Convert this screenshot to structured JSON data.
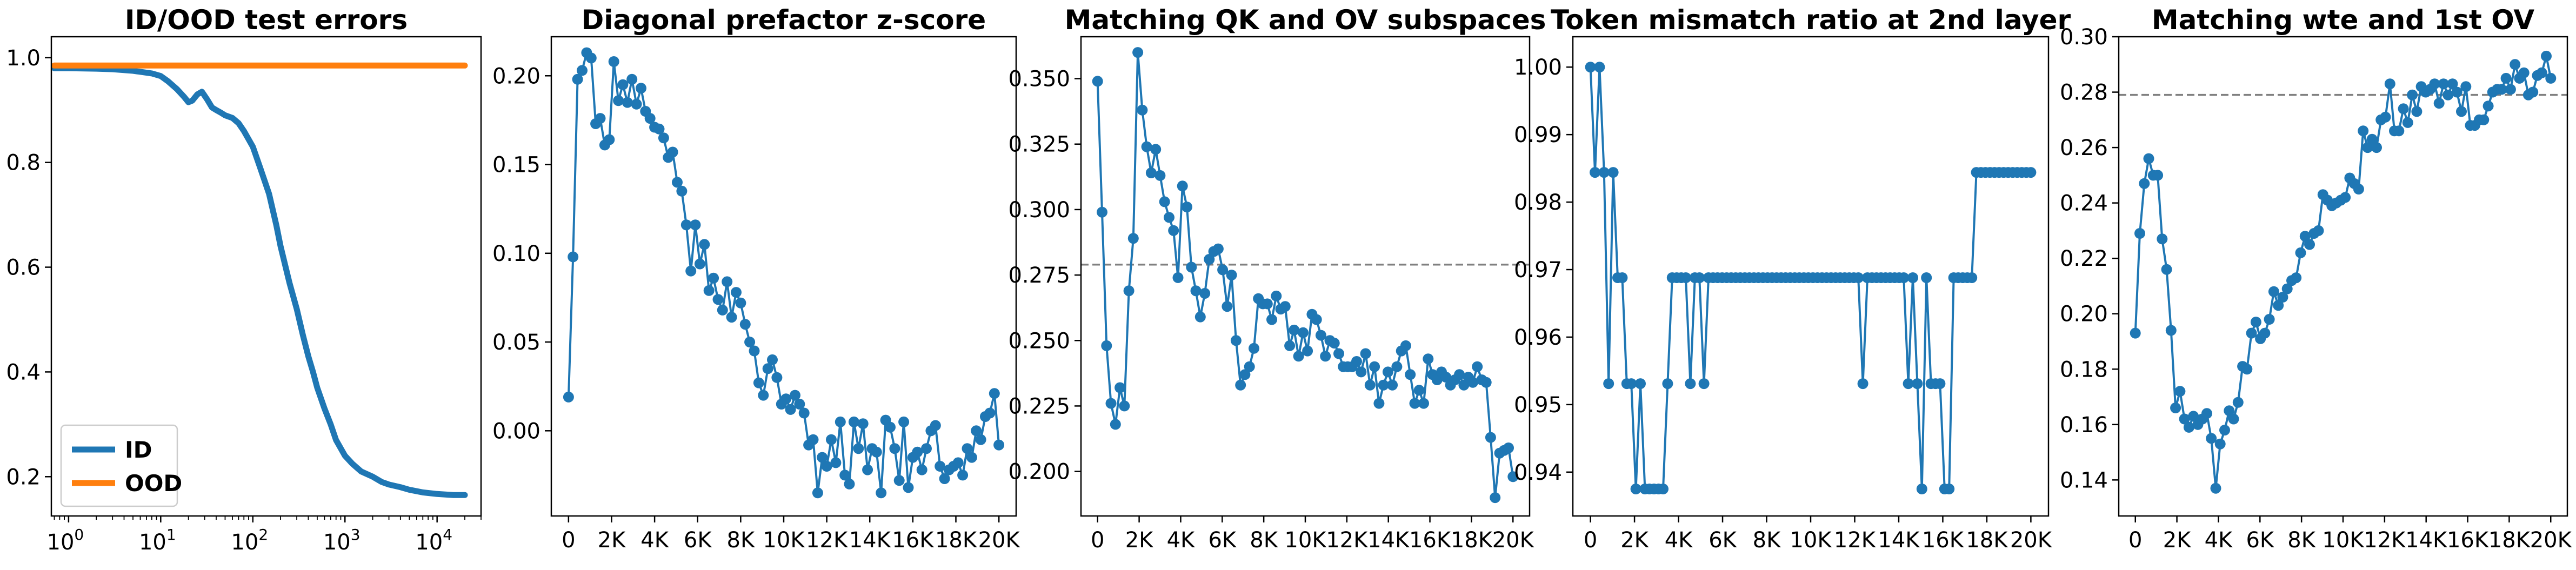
{
  "chart_data": [
    {
      "type": "line",
      "title": "ID/OOD test errors",
      "xscale": "log",
      "xlim": [
        0.65,
        30000
      ],
      "ylim": [
        0.125,
        1.04
      ],
      "xticks": [
        {
          "value": 1,
          "base": "10",
          "exp": "0"
        },
        {
          "value": 10,
          "base": "10",
          "exp": "1"
        },
        {
          "value": 100,
          "base": "10",
          "exp": "2"
        },
        {
          "value": 1000,
          "base": "10",
          "exp": "3"
        },
        {
          "value": 10000,
          "base": "10",
          "exp": "4"
        }
      ],
      "yticks": [
        {
          "value": 0.2,
          "label": "0.2"
        },
        {
          "value": 0.4,
          "label": "0.4"
        },
        {
          "value": 0.6,
          "label": "0.6"
        },
        {
          "value": 0.8,
          "label": "0.8"
        },
        {
          "value": 1.0,
          "label": "1.0"
        }
      ],
      "legend": {
        "position": "lower-left"
      },
      "series": [
        {
          "name": "ID",
          "color": "#1f77b4",
          "x": [
            0.7,
            1,
            2,
            3,
            5,
            8,
            10,
            12,
            15,
            18,
            20,
            22,
            25,
            28,
            32,
            36,
            40,
            45,
            50,
            60,
            70,
            80,
            100,
            120,
            150,
            180,
            200,
            250,
            300,
            350,
            400,
            450,
            500,
            600,
            700,
            800,
            1000,
            1200,
            1500,
            2000,
            2500,
            3000,
            4000,
            5000,
            7000,
            10000,
            15000,
            20000
          ],
          "y": [
            0.98,
            0.98,
            0.979,
            0.978,
            0.975,
            0.97,
            0.965,
            0.955,
            0.94,
            0.925,
            0.915,
            0.918,
            0.93,
            0.935,
            0.92,
            0.905,
            0.9,
            0.895,
            0.89,
            0.885,
            0.875,
            0.86,
            0.83,
            0.79,
            0.74,
            0.68,
            0.64,
            0.57,
            0.52,
            0.47,
            0.43,
            0.4,
            0.37,
            0.33,
            0.3,
            0.27,
            0.24,
            0.225,
            0.21,
            0.2,
            0.19,
            0.185,
            0.18,
            0.175,
            0.17,
            0.167,
            0.165,
            0.165
          ]
        },
        {
          "name": "OOD",
          "color": "#ff7f0e",
          "x": [
            0.7,
            1,
            10,
            100,
            1000,
            10000,
            20000
          ],
          "y": [
            0.985,
            0.985,
            0.985,
            0.985,
            0.985,
            0.985,
            0.985
          ]
        }
      ]
    },
    {
      "type": "line",
      "title": "Diagonal prefactor z-score",
      "xlim": [
        -800,
        20800
      ],
      "ylim": [
        -0.048,
        0.222
      ],
      "xticks": [
        {
          "value": 0,
          "label": "0"
        },
        {
          "value": 2000,
          "label": "2K"
        },
        {
          "value": 4000,
          "label": "4K"
        },
        {
          "value": 6000,
          "label": "6K"
        },
        {
          "value": 8000,
          "label": "8K"
        },
        {
          "value": 10000,
          "label": "10K"
        },
        {
          "value": 12000,
          "label": "12K"
        },
        {
          "value": 14000,
          "label": "14K"
        },
        {
          "value": 16000,
          "label": "16K"
        },
        {
          "value": 18000,
          "label": "18K"
        },
        {
          "value": 20000,
          "label": "20K"
        }
      ],
      "yticks": [
        {
          "value": 0.0,
          "label": "0.00"
        },
        {
          "value": 0.05,
          "label": "0.05"
        },
        {
          "value": 0.1,
          "label": "0.10"
        },
        {
          "value": 0.15,
          "label": "0.15"
        },
        {
          "value": 0.2,
          "label": "0.20"
        }
      ],
      "series": [
        {
          "color": "#1f77b4",
          "y": [
            0.019,
            0.098,
            0.198,
            0.203,
            0.213,
            0.21,
            0.173,
            0.176,
            0.161,
            0.164,
            0.208,
            0.186,
            0.195,
            0.185,
            0.198,
            0.184,
            0.193,
            0.18,
            0.176,
            0.171,
            0.17,
            0.165,
            0.154,
            0.157,
            0.14,
            0.135,
            0.116,
            0.09,
            0.116,
            0.094,
            0.105,
            0.079,
            0.086,
            0.074,
            0.068,
            0.084,
            0.064,
            0.078,
            0.072,
            0.06,
            0.05,
            0.045,
            0.027,
            0.02,
            0.035,
            0.04,
            0.03,
            0.015,
            0.018,
            0.012,
            0.02,
            0.015,
            0.01,
            -0.008,
            -0.005,
            -0.035,
            -0.015,
            -0.02,
            -0.005,
            -0.018,
            0.005,
            -0.025,
            -0.03,
            0.005,
            -0.01,
            0.004,
            -0.022,
            -0.01,
            -0.012,
            -0.035,
            0.006,
            0.002,
            -0.01,
            -0.028,
            0.005,
            -0.032,
            -0.015,
            -0.012,
            -0.022,
            -0.01,
            0.0,
            0.003,
            -0.02,
            -0.027,
            -0.022,
            -0.02,
            -0.018,
            -0.025,
            -0.01,
            -0.015,
            0.0,
            -0.005,
            0.008,
            0.01,
            0.021,
            -0.008
          ]
        }
      ]
    },
    {
      "type": "line",
      "title": "Matching QK and OV subspaces",
      "xlim": [
        -800,
        20800
      ],
      "ylim": [
        0.183,
        0.366
      ],
      "xticks": [
        {
          "value": 0,
          "label": "0"
        },
        {
          "value": 2000,
          "label": "2K"
        },
        {
          "value": 4000,
          "label": "4K"
        },
        {
          "value": 6000,
          "label": "6K"
        },
        {
          "value": 8000,
          "label": "8K"
        },
        {
          "value": 10000,
          "label": "10K"
        },
        {
          "value": 12000,
          "label": "12K"
        },
        {
          "value": 14000,
          "label": "14K"
        },
        {
          "value": 16000,
          "label": "16K"
        },
        {
          "value": 18000,
          "label": "18K"
        },
        {
          "value": 20000,
          "label": "20K"
        }
      ],
      "yticks": [
        {
          "value": 0.2,
          "label": "0.200"
        },
        {
          "value": 0.225,
          "label": "0.225"
        },
        {
          "value": 0.25,
          "label": "0.250"
        },
        {
          "value": 0.275,
          "label": "0.275"
        },
        {
          "value": 0.3,
          "label": "0.300"
        },
        {
          "value": 0.325,
          "label": "0.325"
        },
        {
          "value": 0.35,
          "label": "0.350"
        }
      ],
      "reference_line": 0.279,
      "series": [
        {
          "color": "#1f77b4",
          "y": [
            0.349,
            0.299,
            0.248,
            0.226,
            0.218,
            0.232,
            0.225,
            0.269,
            0.289,
            0.36,
            0.338,
            0.324,
            0.314,
            0.323,
            0.313,
            0.303,
            0.297,
            0.292,
            0.274,
            0.309,
            0.301,
            0.278,
            0.269,
            0.259,
            0.268,
            0.281,
            0.284,
            0.285,
            0.277,
            0.263,
            0.275,
            0.25,
            0.233,
            0.237,
            0.24,
            0.247,
            0.266,
            0.264,
            0.264,
            0.258,
            0.267,
            0.262,
            0.263,
            0.248,
            0.254,
            0.244,
            0.253,
            0.246,
            0.26,
            0.258,
            0.252,
            0.244,
            0.25,
            0.249,
            0.245,
            0.24,
            0.24,
            0.24,
            0.242,
            0.238,
            0.245,
            0.233,
            0.24,
            0.226,
            0.233,
            0.238,
            0.233,
            0.24,
            0.246,
            0.248,
            0.237,
            0.226,
            0.231,
            0.226,
            0.243,
            0.237,
            0.235,
            0.238,
            0.236,
            0.233,
            0.235,
            0.237,
            0.233,
            0.236,
            0.234,
            0.24,
            0.235,
            0.234,
            0.213,
            0.19,
            0.207,
            0.208,
            0.209,
            0.198
          ]
        }
      ]
    },
    {
      "type": "line",
      "title": "Token mismatch ratio at 2nd layer",
      "xlim": [
        -800,
        20800
      ],
      "ylim": [
        0.9335,
        1.0045
      ],
      "xticks": [
        {
          "value": 0,
          "label": "0"
        },
        {
          "value": 2000,
          "label": "2K"
        },
        {
          "value": 4000,
          "label": "4K"
        },
        {
          "value": 6000,
          "label": "6K"
        },
        {
          "value": 8000,
          "label": "8K"
        },
        {
          "value": 10000,
          "label": "10K"
        },
        {
          "value": 12000,
          "label": "12K"
        },
        {
          "value": 14000,
          "label": "14K"
        },
        {
          "value": 16000,
          "label": "16K"
        },
        {
          "value": 18000,
          "label": "18K"
        },
        {
          "value": 20000,
          "label": "20K"
        }
      ],
      "yticks": [
        {
          "value": 0.94,
          "label": "0.94"
        },
        {
          "value": 0.95,
          "label": "0.95"
        },
        {
          "value": 0.96,
          "label": "0.96"
        },
        {
          "value": 0.97,
          "label": "0.97"
        },
        {
          "value": 0.98,
          "label": "0.98"
        },
        {
          "value": 0.99,
          "label": "0.99"
        },
        {
          "value": 1.0,
          "label": "1.00"
        }
      ],
      "series": [
        {
          "color": "#1f77b4",
          "y": [
            1.0,
            0.9844,
            1.0,
            0.9844,
            0.9531,
            0.9844,
            0.9688,
            0.9688,
            0.9531,
            0.9531,
            0.9375,
            0.9531,
            0.9375,
            0.9375,
            0.9375,
            0.9375,
            0.9375,
            0.9531,
            0.9688,
            0.9688,
            0.9688,
            0.9688,
            0.9531,
            0.9688,
            0.9688,
            0.9531,
            0.9688,
            0.9688,
            0.9688,
            0.9688,
            0.9688,
            0.9688,
            0.9688,
            0.9688,
            0.9688,
            0.9688,
            0.9688,
            0.9688,
            0.9688,
            0.9688,
            0.9688,
            0.9688,
            0.9688,
            0.9688,
            0.9688,
            0.9688,
            0.9688,
            0.9688,
            0.9688,
            0.9688,
            0.9688,
            0.9688,
            0.9688,
            0.9688,
            0.9688,
            0.9688,
            0.9688,
            0.9688,
            0.9688,
            0.9688,
            0.9531,
            0.9688,
            0.9688,
            0.9688,
            0.9688,
            0.9688,
            0.9688,
            0.9688,
            0.9688,
            0.9688,
            0.9531,
            0.9688,
            0.9531,
            0.9375,
            0.9688,
            0.9531,
            0.9531,
            0.9531,
            0.9375,
            0.9375,
            0.9688,
            0.9688,
            0.9688,
            0.9688,
            0.9688,
            0.9844,
            0.9844,
            0.9844,
            0.9844,
            0.9844,
            0.9844,
            0.9844,
            0.9844,
            0.9844,
            0.9844,
            0.9844,
            0.9844,
            0.9844
          ]
        }
      ]
    },
    {
      "type": "line",
      "title": "Matching wte and 1st OV",
      "xlim": [
        -800,
        20800
      ],
      "ylim": [
        0.127,
        0.3
      ],
      "xticks": [
        {
          "value": 0,
          "label": "0"
        },
        {
          "value": 2000,
          "label": "2K"
        },
        {
          "value": 4000,
          "label": "4K"
        },
        {
          "value": 6000,
          "label": "6K"
        },
        {
          "value": 8000,
          "label": "8K"
        },
        {
          "value": 10000,
          "label": "10K"
        },
        {
          "value": 12000,
          "label": "12K"
        },
        {
          "value": 14000,
          "label": "14K"
        },
        {
          "value": 16000,
          "label": "16K"
        },
        {
          "value": 18000,
          "label": "18K"
        },
        {
          "value": 20000,
          "label": "20K"
        }
      ],
      "yticks": [
        {
          "value": 0.14,
          "label": "0.14"
        },
        {
          "value": 0.16,
          "label": "0.16"
        },
        {
          "value": 0.18,
          "label": "0.18"
        },
        {
          "value": 0.2,
          "label": "0.20"
        },
        {
          "value": 0.22,
          "label": "0.22"
        },
        {
          "value": 0.24,
          "label": "0.24"
        },
        {
          "value": 0.26,
          "label": "0.26"
        },
        {
          "value": 0.28,
          "label": "0.28"
        },
        {
          "value": 0.3,
          "label": "0.30"
        }
      ],
      "reference_line": 0.279,
      "series": [
        {
          "color": "#1f77b4",
          "y": [
            0.193,
            0.229,
            0.247,
            0.256,
            0.25,
            0.25,
            0.227,
            0.216,
            0.194,
            0.166,
            0.172,
            0.162,
            0.159,
            0.163,
            0.16,
            0.162,
            0.164,
            0.155,
            0.137,
            0.153,
            0.158,
            0.165,
            0.162,
            0.168,
            0.181,
            0.18,
            0.193,
            0.197,
            0.191,
            0.193,
            0.198,
            0.208,
            0.203,
            0.206,
            0.209,
            0.212,
            0.213,
            0.222,
            0.228,
            0.225,
            0.229,
            0.23,
            0.243,
            0.241,
            0.239,
            0.24,
            0.241,
            0.242,
            0.249,
            0.247,
            0.245,
            0.266,
            0.26,
            0.263,
            0.26,
            0.27,
            0.271,
            0.283,
            0.266,
            0.266,
            0.274,
            0.269,
            0.279,
            0.273,
            0.282,
            0.28,
            0.281,
            0.283,
            0.276,
            0.283,
            0.279,
            0.283,
            0.28,
            0.273,
            0.282,
            0.268,
            0.268,
            0.27,
            0.27,
            0.275,
            0.28,
            0.281,
            0.281,
            0.285,
            0.281,
            0.29,
            0.285,
            0.287,
            0.279,
            0.28,
            0.286,
            0.287,
            0.293,
            0.285
          ]
        }
      ]
    }
  ]
}
